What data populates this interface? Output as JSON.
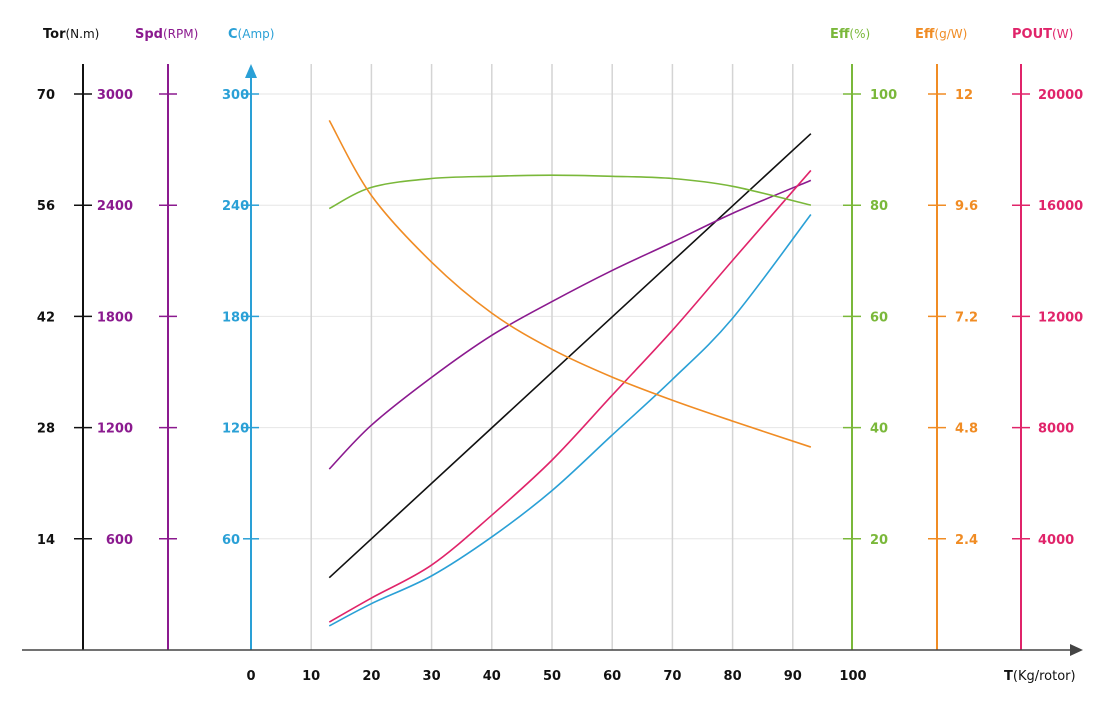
{
  "chart_data": {
    "type": "line",
    "title": "",
    "xlabel": "T(Kg/rotor)",
    "xlim": [
      0,
      100
    ],
    "x_ticks": [
      "0",
      "10",
      "20",
      "30",
      "40",
      "50",
      "60",
      "70",
      "80",
      "90",
      "100"
    ],
    "grid": true,
    "axes": [
      {
        "id": "tor",
        "name": "Tor",
        "unit": "(N.m)",
        "side": "left",
        "color": "#111111",
        "max": 84,
        "ticks": [
          "14",
          "28",
          "42",
          "56",
          "70"
        ]
      },
      {
        "id": "spd",
        "name": "Spd",
        "unit": "(RPM)",
        "side": "left",
        "color": "#8b1a8f",
        "max": 3600,
        "ticks": [
          "600",
          "1200",
          "1800",
          "2400",
          "3000"
        ]
      },
      {
        "id": "cur",
        "name": "C",
        "unit": "(Amp)",
        "side": "left",
        "color": "#2aa0d6",
        "max": 360,
        "ticks": [
          "0",
          "60",
          "120",
          "180",
          "240",
          "300"
        ]
      },
      {
        "id": "effp",
        "name": "Eff",
        "unit": "(%)",
        "side": "right",
        "color": "#7ab83a",
        "max": 120,
        "ticks": [
          "20",
          "40",
          "60",
          "80",
          "100"
        ]
      },
      {
        "id": "effg",
        "name": "Eff",
        "unit": "(g/W)",
        "side": "right",
        "color": "#f08c24",
        "max": 14.4,
        "ticks": [
          "2.4",
          "4.8",
          "7.2",
          "9.6",
          "12"
        ]
      },
      {
        "id": "pout",
        "name": "POUT",
        "unit": "(W)",
        "side": "right",
        "color": "#e0246a",
        "max": 24000,
        "ticks": [
          "4000",
          "8000",
          "12000",
          "16000",
          "20000"
        ]
      }
    ],
    "series": [
      {
        "name": "Torque",
        "axis": "tor",
        "x": [
          13,
          93
        ],
        "values": [
          9.1,
          65
        ]
      },
      {
        "name": "Speed",
        "axis": "spd",
        "x": [
          13,
          20,
          30,
          40,
          50,
          60,
          70,
          80,
          93
        ],
        "values": [
          976,
          1213,
          1471,
          1698,
          1880,
          2048,
          2200,
          2356,
          2534
        ]
      },
      {
        "name": "Current",
        "axis": "cur",
        "x": [
          13,
          20,
          30,
          40,
          50,
          60,
          70,
          80,
          93
        ],
        "values": [
          13,
          25,
          40,
          61,
          86,
          116,
          146,
          179,
          235
        ]
      },
      {
        "name": "POUT",
        "axis": "pout",
        "x": [
          13,
          20,
          30,
          40,
          50,
          60,
          70,
          80,
          93
        ],
        "values": [
          1006,
          1870,
          3055,
          4850,
          6830,
          9165,
          11500,
          14016,
          17250
        ]
      },
      {
        "name": "Eff %",
        "axis": "effp",
        "x": [
          13,
          20,
          30,
          40,
          50,
          60,
          70,
          80,
          93
        ],
        "values": [
          79.4,
          83.2,
          84.8,
          85.2,
          85.4,
          85.2,
          84.8,
          83.4,
          80.0
        ]
      },
      {
        "name": "Eff g/W",
        "axis": "effg",
        "x": [
          13,
          20,
          30,
          40,
          50,
          60,
          70,
          80,
          93
        ],
        "values": [
          11.43,
          9.81,
          8.37,
          7.27,
          6.49,
          5.89,
          5.39,
          4.94,
          4.38
        ]
      }
    ]
  }
}
